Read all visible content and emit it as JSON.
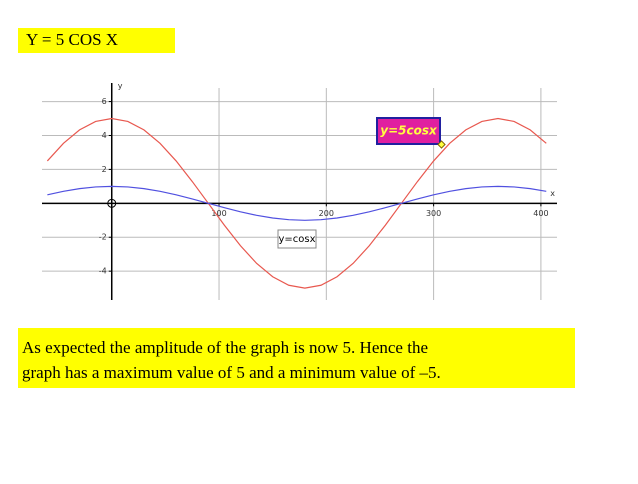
{
  "slide_title": "Y = 5 COS X",
  "caption": [
    "As expected the amplitude of the graph is now 5. Hence the",
    "graph has a maximum value of 5 and a minimum value of –5."
  ],
  "chart_data": {
    "type": "line",
    "x_label": "x",
    "y_label": "y",
    "x": [
      -60,
      -45,
      -30,
      -15,
      0,
      15,
      30,
      45,
      60,
      75,
      90,
      105,
      120,
      135,
      150,
      165,
      180,
      195,
      210,
      225,
      240,
      255,
      270,
      285,
      300,
      315,
      330,
      345,
      360,
      375,
      390,
      405
    ],
    "series": [
      {
        "name": "y=5cosx",
        "color": "#e8584f",
        "label_fill": "#e020a0",
        "label_text_color": "#ffff40",
        "values": [
          2.5,
          3.54,
          4.33,
          4.83,
          5,
          4.83,
          4.33,
          3.54,
          2.5,
          1.29,
          0,
          -1.29,
          -2.5,
          -3.54,
          -4.33,
          -4.83,
          -5,
          -4.83,
          -4.33,
          -3.54,
          -2.5,
          -1.29,
          0,
          1.29,
          2.5,
          3.54,
          4.33,
          4.83,
          5,
          4.83,
          4.33,
          3.54
        ]
      },
      {
        "name": "y=cosx",
        "color": "#5050e0",
        "label_fill": "#ffffff",
        "label_text_color": "#000000",
        "values": [
          0.5,
          0.707,
          0.866,
          0.966,
          1,
          0.966,
          0.866,
          0.707,
          0.5,
          0.259,
          0,
          -0.259,
          -0.5,
          -0.707,
          -0.866,
          -0.966,
          -1,
          -0.966,
          -0.866,
          -0.707,
          -0.5,
          -0.259,
          0,
          0.259,
          0.5,
          0.707,
          0.866,
          0.966,
          1,
          0.966,
          0.866,
          0.707
        ]
      }
    ],
    "xlim": [
      -65,
      415
    ],
    "ylim": [
      -5.7,
      6.8
    ],
    "xticks": [
      100,
      200,
      300,
      400
    ],
    "yticks": [
      -4,
      -2,
      2,
      4,
      6
    ],
    "grid": true
  }
}
